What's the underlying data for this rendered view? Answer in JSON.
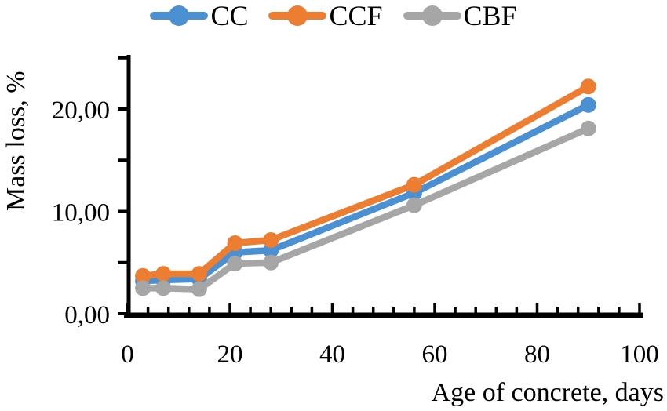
{
  "chart_data": {
    "type": "line",
    "x": [
      3,
      7,
      14,
      21,
      28,
      56,
      90
    ],
    "series": [
      {
        "name": "CC",
        "color": "#4A90D3",
        "values": [
          3.2,
          3.3,
          3.4,
          6.0,
          6.2,
          11.8,
          20.4
        ]
      },
      {
        "name": "CCF",
        "color": "#ED7D31",
        "values": [
          3.7,
          3.9,
          3.9,
          6.9,
          7.2,
          12.6,
          22.2
        ]
      },
      {
        "name": "CBF",
        "color": "#A6A6A6",
        "values": [
          2.5,
          2.5,
          2.4,
          4.9,
          5.0,
          10.6,
          18.1
        ]
      }
    ],
    "xlabel": "Age of concrete, days",
    "ylabel": "Mass loss, %",
    "xlim": [
      0,
      101
    ],
    "ylim": [
      0,
      25.4
    ],
    "x_major_ticks": [
      0,
      20,
      40,
      60,
      80,
      100
    ],
    "x_tick_labels": [
      "0",
      "20",
      "40",
      "60",
      "80",
      "100"
    ],
    "x_minor_step": 4,
    "y_ticks": [
      0,
      5,
      10,
      15,
      20,
      25
    ],
    "y_labeled_ticks": [
      {
        "value": 0,
        "label": "0,00"
      },
      {
        "value": 10,
        "label": "10,00"
      },
      {
        "value": 20,
        "label": "20,00"
      }
    ],
    "legend_position": "top",
    "grid": false,
    "marker": "circle",
    "axis_color": "#000000"
  }
}
